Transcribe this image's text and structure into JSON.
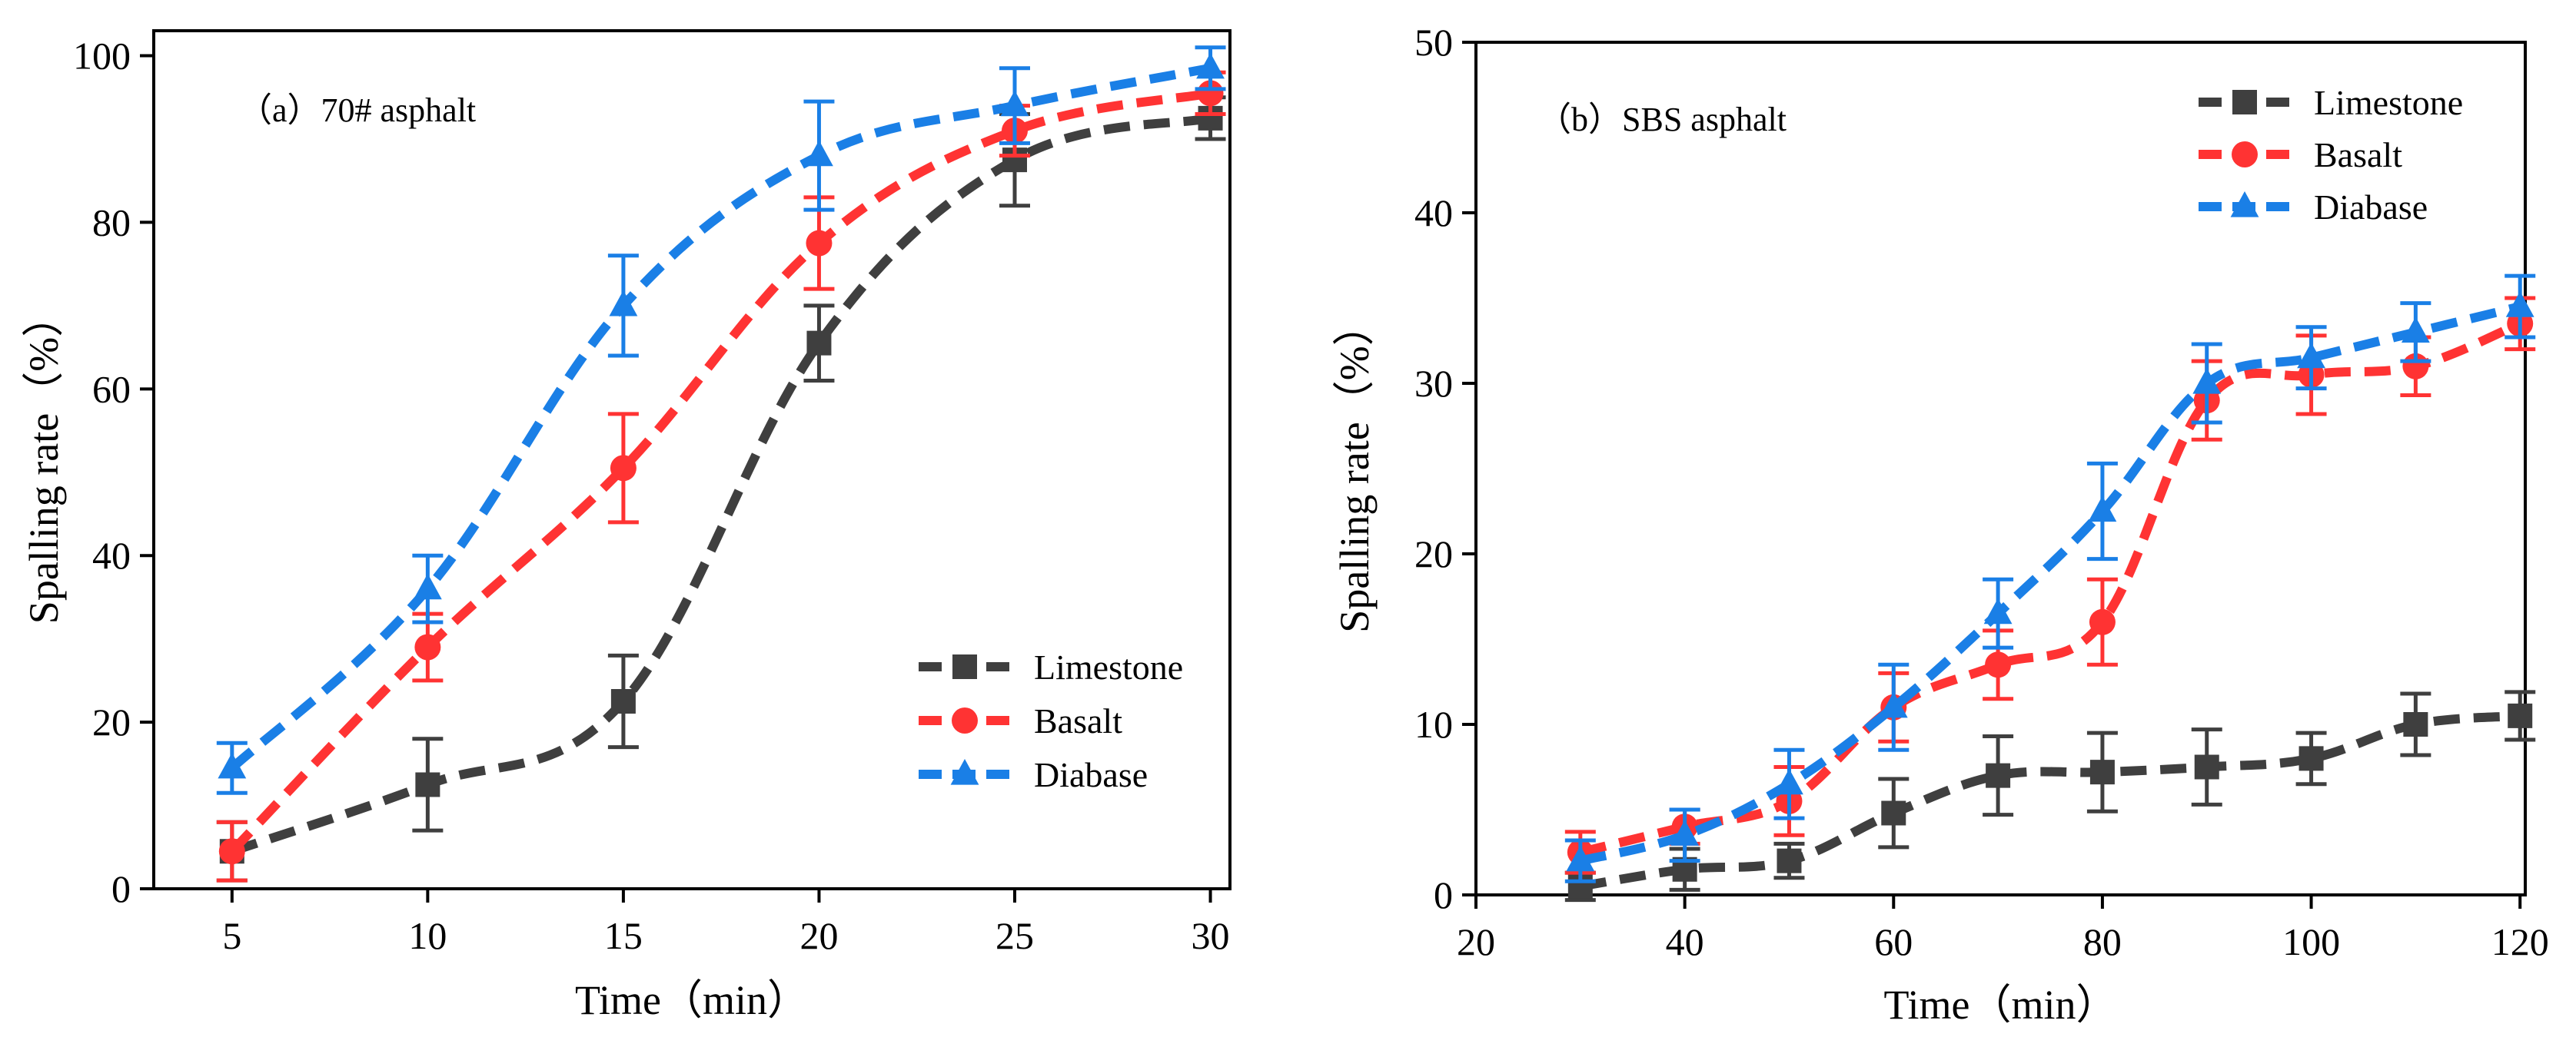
{
  "colors": {
    "Limestone": "#3f3f3f",
    "Basalt": "#ff3333",
    "Diabase": "#1a7fe6",
    "axis": "#000000"
  },
  "chart_data": [
    {
      "type": "line",
      "annotation": "（a）70# asphalt",
      "xlabel": "Time（min）",
      "ylabel": "Spalling rate（%）",
      "xlim": [
        3,
        30.5
      ],
      "ylim": [
        0,
        103
      ],
      "xticks": [
        5,
        10,
        15,
        20,
        25,
        30
      ],
      "yticks": [
        0,
        20,
        40,
        60,
        80,
        100
      ],
      "legend_position": "lower-right",
      "x": [
        5,
        10,
        15,
        20,
        25,
        30
      ],
      "series": [
        {
          "name": "Limestone",
          "marker": "square",
          "values": [
            4.5,
            12.5,
            22.5,
            65.5,
            87.5,
            92.5
          ],
          "errors": [
            3.5,
            5.5,
            5.5,
            4.5,
            5.5,
            2.5
          ]
        },
        {
          "name": "Basalt",
          "marker": "circle",
          "values": [
            4.5,
            29.0,
            50.5,
            77.5,
            91.0,
            95.5
          ],
          "errors": [
            3.5,
            4.0,
            6.5,
            5.5,
            3.0,
            2.5
          ]
        },
        {
          "name": "Diabase",
          "marker": "triangle",
          "values": [
            14.5,
            36.0,
            70.0,
            88.0,
            94.0,
            98.5
          ],
          "errors": [
            3.0,
            4.0,
            6.0,
            6.5,
            4.5,
            2.5
          ]
        }
      ]
    },
    {
      "type": "line",
      "annotation": "（b）SBS asphalt",
      "xlabel": "Time（min）",
      "ylabel": "Spalling rate（%）",
      "xlim": [
        20,
        120.5
      ],
      "ylim": [
        0,
        50
      ],
      "xticks": [
        20,
        40,
        60,
        80,
        100,
        120
      ],
      "yticks": [
        0,
        10,
        20,
        30,
        40,
        50
      ],
      "legend_position": "top-right",
      "x": [
        30,
        40,
        50,
        60,
        70,
        80,
        90,
        100,
        110,
        120
      ],
      "series": [
        {
          "name": "Limestone",
          "marker": "square",
          "values": [
            0.5,
            1.5,
            2.0,
            4.8,
            7.0,
            7.2,
            7.5,
            8.0,
            10.0,
            10.5
          ],
          "errors": [
            0.8,
            1.2,
            1.0,
            2.0,
            2.3,
            2.3,
            2.2,
            1.5,
            1.8,
            1.4
          ]
        },
        {
          "name": "Basalt",
          "marker": "circle",
          "values": [
            2.5,
            4.0,
            5.5,
            11.0,
            13.5,
            16.0,
            29.0,
            30.5,
            31.0,
            33.5
          ],
          "errors": [
            1.2,
            1.0,
            2.0,
            2.0,
            2.0,
            2.5,
            2.3,
            2.3,
            1.7,
            1.5
          ]
        },
        {
          "name": "Diabase",
          "marker": "triangle",
          "values": [
            2.0,
            3.5,
            6.5,
            11.0,
            16.5,
            22.5,
            30.0,
            31.5,
            33.0,
            34.5
          ],
          "errors": [
            1.2,
            1.5,
            2.0,
            2.5,
            2.0,
            2.8,
            2.3,
            1.8,
            1.7,
            1.8
          ]
        }
      ]
    }
  ]
}
